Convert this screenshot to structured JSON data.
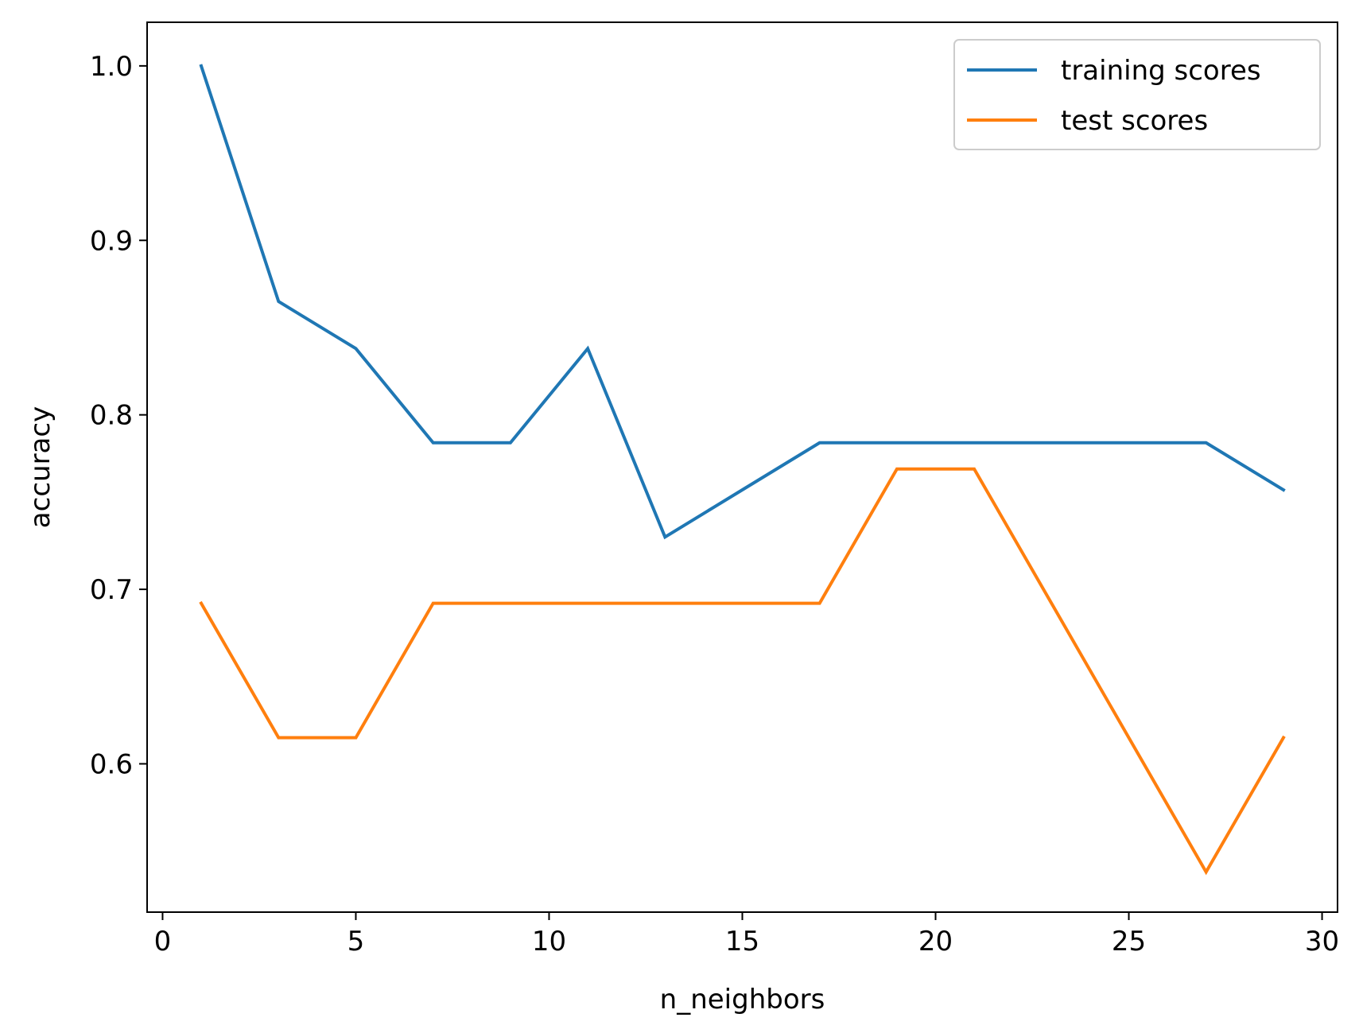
{
  "chart_data": {
    "type": "line",
    "xlabel": "n_neighbors",
    "ylabel": "accuracy",
    "xlim": [
      -0.4,
      30.4
    ],
    "ylim": [
      0.515,
      1.025
    ],
    "x_ticks": [
      0,
      5,
      10,
      15,
      20,
      25,
      30
    ],
    "y_ticks": [
      0.6,
      0.7,
      0.8,
      0.9,
      1.0
    ],
    "x_tick_labels": [
      "0",
      "5",
      "10",
      "15",
      "20",
      "25",
      "30"
    ],
    "y_tick_labels": [
      "0.6",
      "0.7",
      "0.8",
      "0.9",
      "1.0"
    ],
    "grid": false,
    "legend_position": "top-right",
    "x": [
      1,
      3,
      5,
      7,
      9,
      11,
      13,
      15,
      17,
      19,
      21,
      23,
      25,
      27,
      29
    ],
    "series": [
      {
        "name": "training scores",
        "color": "#1f77b4",
        "values": [
          1.0,
          0.865,
          0.838,
          0.784,
          0.784,
          0.838,
          0.73,
          0.757,
          0.784,
          0.784,
          0.784,
          0.784,
          0.784,
          0.784,
          0.757
        ]
      },
      {
        "name": "test scores",
        "color": "#ff7f0e",
        "values": [
          0.692,
          0.615,
          0.615,
          0.692,
          0.692,
          0.692,
          0.692,
          0.692,
          0.692,
          0.769,
          0.769,
          0.692,
          0.615,
          0.538,
          0.615
        ]
      }
    ]
  }
}
